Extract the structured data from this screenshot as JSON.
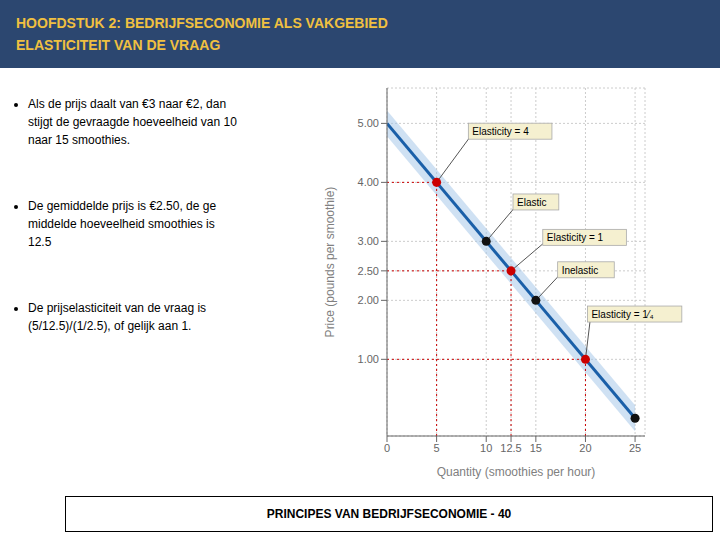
{
  "chart_data": {
    "type": "line",
    "title": "HOOFDSTUK 2: BEDRIJFSECONOMIE ALS VAKGEBIED",
    "subtitle": "ELASTICITEIT VAN DE VRAAG",
    "bullets": [
      "Als de prijs daalt van €3 naar €2, dan\nstijgt de gevraagde hoeveelheid van 10\nnaar 15 smoothies.",
      "De gemiddelde prijs is €2.50, de ge\nmiddelde hoeveelheid smoothies is\n12.5",
      "De prijselasticiteit van de vraag is\n(5/12.5)/(1/2.5), of gelijk aan 1."
    ],
    "footer": "PRINCIPES VAN BEDRIJFSECONOMIE - 40",
    "xlabel": "Quantity (smoothies per hour)",
    "ylabel": "Price (pounds per smoothie)",
    "xlim": [
      0,
      26
    ],
    "ylim": [
      -0.3,
      5.6
    ],
    "xticks": [
      0,
      5,
      10,
      12.5,
      15,
      20,
      25
    ],
    "yticks": [
      {
        "value": 1.0,
        "label": "1.00"
      },
      {
        "value": 2.0,
        "label": "2.00"
      },
      {
        "value": 2.5,
        "label": "2.50"
      },
      {
        "value": 3.0,
        "label": "3.00"
      },
      {
        "value": 4.0,
        "label": "4.00"
      },
      {
        "value": 5.0,
        "label": "5.00"
      }
    ],
    "grid": true,
    "series": [
      {
        "type": "area",
        "color": "#a0c4e8",
        "x": [
          0,
          25
        ],
        "lower": [
          4.78,
          -0.22
        ],
        "upper": [
          5.22,
          0.22
        ]
      },
      {
        "type": "line",
        "color": "#1a5fa8",
        "x": [
          0,
          25
        ],
        "values": [
          5.0,
          0.0
        ]
      },
      {
        "type": "scatter",
        "color": "#111111",
        "marker": "circle",
        "x": [
          10,
          15,
          25
        ],
        "values": [
          3.0,
          2.0,
          0.0
        ]
      },
      {
        "type": "scatter",
        "color": "#cc0000",
        "marker": "circle",
        "line_style": "dotted",
        "x": [
          5,
          12.5,
          20
        ],
        "values": [
          4.0,
          2.5,
          1.0
        ]
      }
    ],
    "annotations": [
      {
        "label": "Elasticity = 4",
        "xy": [
          5,
          4.0
        ],
        "xytext": [
          8.5,
          4.8
        ],
        "color": "#f5f0d0"
      },
      {
        "label": "Elastic",
        "xy": [
          10,
          3.0
        ],
        "xytext": [
          13,
          3.6
        ],
        "color": "#f5f0d0"
      },
      {
        "label": "Elasticity = 1",
        "xy": [
          12.5,
          2.5
        ],
        "xytext": [
          16,
          3.0
        ],
        "color": "#f5f0d0"
      },
      {
        "label": "Inelastic",
        "xy": [
          15,
          2.0
        ],
        "xytext": [
          17.5,
          2.45
        ],
        "color": "#f5f0d0"
      },
      {
        "label": "Elasticity = 1⁄₄",
        "xy": [
          20,
          1.0
        ],
        "xytext": [
          20.5,
          1.7
        ],
        "color": "#f5f0d0"
      }
    ]
  }
}
